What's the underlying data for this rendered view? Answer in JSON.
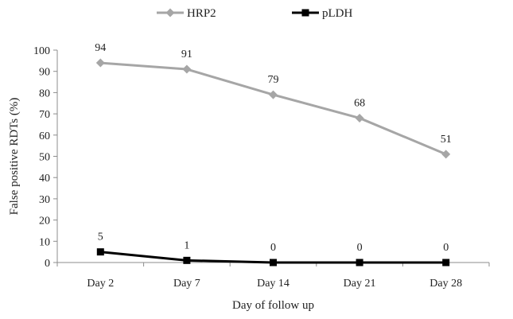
{
  "chart_data": {
    "type": "line",
    "categories": [
      "Day 2",
      "Day 7",
      "Day 14",
      "Day 21",
      "Day 28"
    ],
    "series": [
      {
        "name": "HRP2",
        "values": [
          94,
          91,
          79,
          68,
          51
        ],
        "color": "#a6a6a6",
        "marker": "diamond"
      },
      {
        "name": "pLDH",
        "values": [
          5,
          1,
          0,
          0,
          0
        ],
        "color": "#000000",
        "marker": "square"
      }
    ],
    "xlabel": "Day of follow up",
    "ylabel": "False positive RDTs (%)",
    "ylim": [
      0,
      100
    ],
    "yticks": [
      0,
      10,
      20,
      30,
      40,
      50,
      60,
      70,
      80,
      90,
      100
    ],
    "legend_position": "top",
    "grid": false
  }
}
